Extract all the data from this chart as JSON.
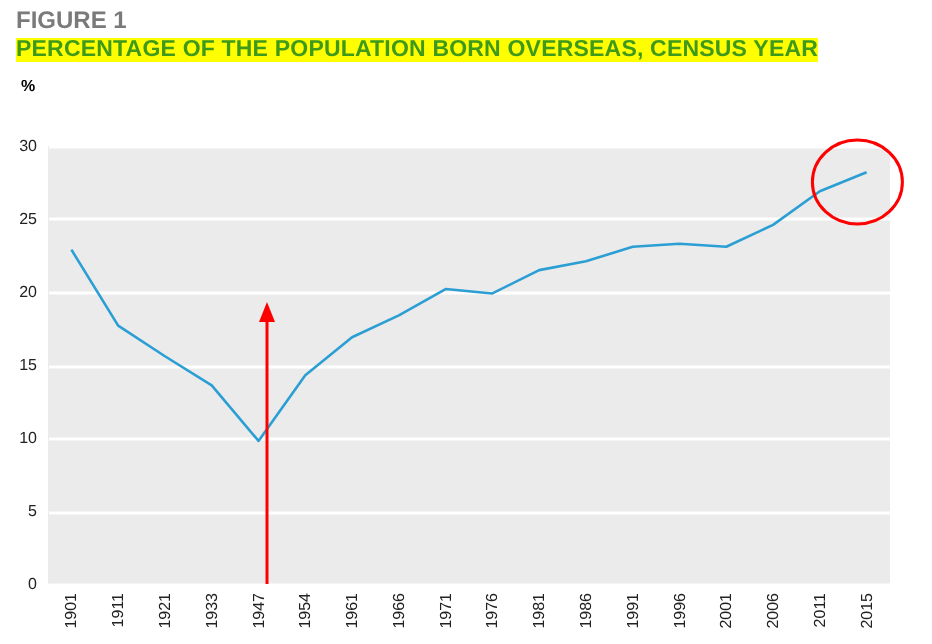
{
  "chart_data": {
    "type": "line",
    "title": "FIGURE 1",
    "subtitle": "PERCENTAGE OF THE POPULATION BORN OVERSEAS, CENSUS YEAR",
    "ylabel": "%",
    "categories": [
      "1901",
      "1911",
      "1921",
      "1933",
      "1947",
      "1954",
      "1961",
      "1966",
      "1971",
      "1976",
      "1981",
      "1986",
      "1991",
      "1996",
      "2001",
      "2006",
      "2011",
      "2015"
    ],
    "series": [
      {
        "color": "#2b9fd4",
        "values": [
          22.9,
          17.7,
          15.6,
          13.6,
          9.8,
          14.3,
          16.9,
          18.4,
          20.2,
          19.9,
          21.5,
          22.1,
          23.1,
          23.3,
          23.1,
          24.6,
          26.9,
          28.2
        ]
      }
    ],
    "ylim": [
      0,
      30
    ],
    "yticks": [
      0,
      5,
      10,
      15,
      20,
      25,
      30
    ],
    "grid": "y",
    "marker": "none",
    "line_style": "solid"
  }
}
